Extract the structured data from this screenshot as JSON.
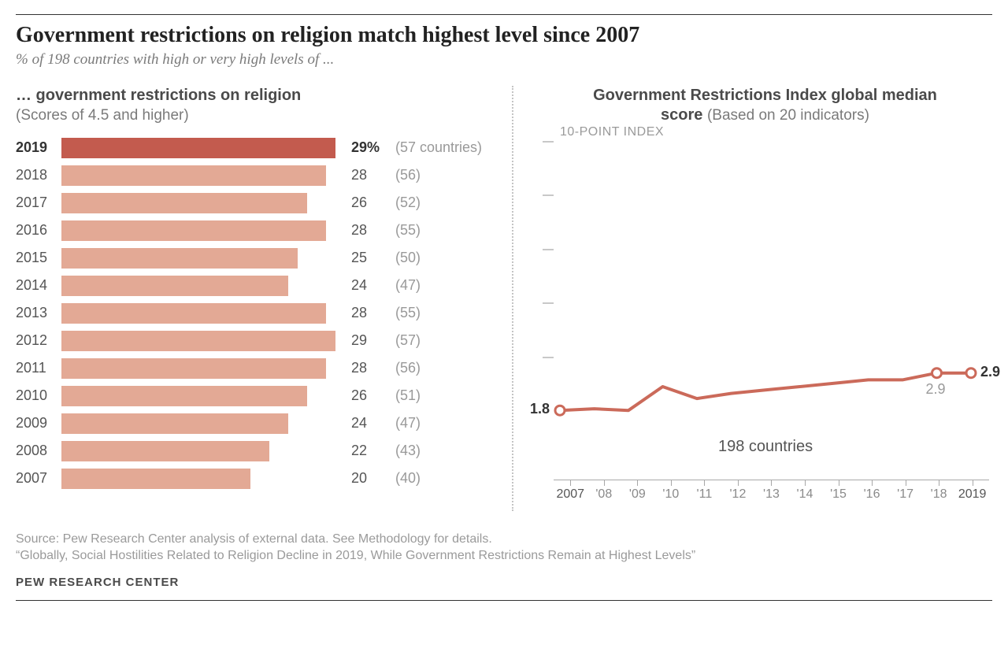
{
  "title": "Government restrictions on religion match highest level since 2007",
  "subtitle": "% of 198 countries with high or very high levels of ...",
  "left_panel": {
    "heading": "… government restrictions on religion",
    "subhead": "(Scores of 4.5 and higher)",
    "max_pct": 30,
    "highlight_color": "#c35b4e",
    "bar_color": "#e3a995",
    "rows": [
      {
        "year": "2019",
        "pct": 29,
        "val_label": "29%",
        "count": "(57 countries)",
        "hl": true
      },
      {
        "year": "2018",
        "pct": 28,
        "val_label": "28",
        "count": "(56)"
      },
      {
        "year": "2017",
        "pct": 26,
        "val_label": "26",
        "count": "(52)"
      },
      {
        "year": "2016",
        "pct": 28,
        "val_label": "28",
        "count": "(55)"
      },
      {
        "year": "2015",
        "pct": 25,
        "val_label": "25",
        "count": "(50)"
      },
      {
        "year": "2014",
        "pct": 24,
        "val_label": "24",
        "count": "(47)"
      },
      {
        "year": "2013",
        "pct": 28,
        "val_label": "28",
        "count": "(55)"
      },
      {
        "year": "2012",
        "pct": 29,
        "val_label": "29",
        "count": "(57)"
      },
      {
        "year": "2011",
        "pct": 28,
        "val_label": "28",
        "count": "(56)"
      },
      {
        "year": "2010",
        "pct": 26,
        "val_label": "26",
        "count": "(51)"
      },
      {
        "year": "2009",
        "pct": 24,
        "val_label": "24",
        "count": "(47)"
      },
      {
        "year": "2008",
        "pct": 22,
        "val_label": "22",
        "count": "(43)"
      },
      {
        "year": "2007",
        "pct": 20,
        "val_label": "20",
        "count": "(40)"
      }
    ]
  },
  "right_panel": {
    "heading_line1": "Government Restrictions Index global median",
    "heading_line2_prefix": "score ",
    "heading_line2_sub": "(Based on 20 indicators)",
    "index_label": "10-POINT INDEX",
    "countries_label": "198 countries",
    "ymax": 10,
    "line_color": "#cb6a5a",
    "point_fill": "#ffffff",
    "series": [
      {
        "x": "2007",
        "y": 1.8,
        "label": "1.8",
        "show_point": true
      },
      {
        "x": "'08",
        "y": 1.85
      },
      {
        "x": "'09",
        "y": 1.8
      },
      {
        "x": "'10",
        "y": 2.5
      },
      {
        "x": "'11",
        "y": 2.15
      },
      {
        "x": "'12",
        "y": 2.3
      },
      {
        "x": "'13",
        "y": 2.4
      },
      {
        "x": "'14",
        "y": 2.5
      },
      {
        "x": "'15",
        "y": 2.6
      },
      {
        "x": "'16",
        "y": 2.7
      },
      {
        "x": "'17",
        "y": 2.7
      },
      {
        "x": "'18",
        "y": 2.9,
        "label": "2.9",
        "show_point": true,
        "label_below": true
      },
      {
        "x": "2019",
        "y": 2.9,
        "label": "2.9",
        "show_point": true
      }
    ]
  },
  "source": "Source: Pew Research Center analysis of external data. See Methodology for details.",
  "quote": "“Globally, Social Hostilities Related to Religion Decline in 2019, While Government Restrictions Remain at Highest Levels”",
  "brand": "PEW RESEARCH CENTER"
}
